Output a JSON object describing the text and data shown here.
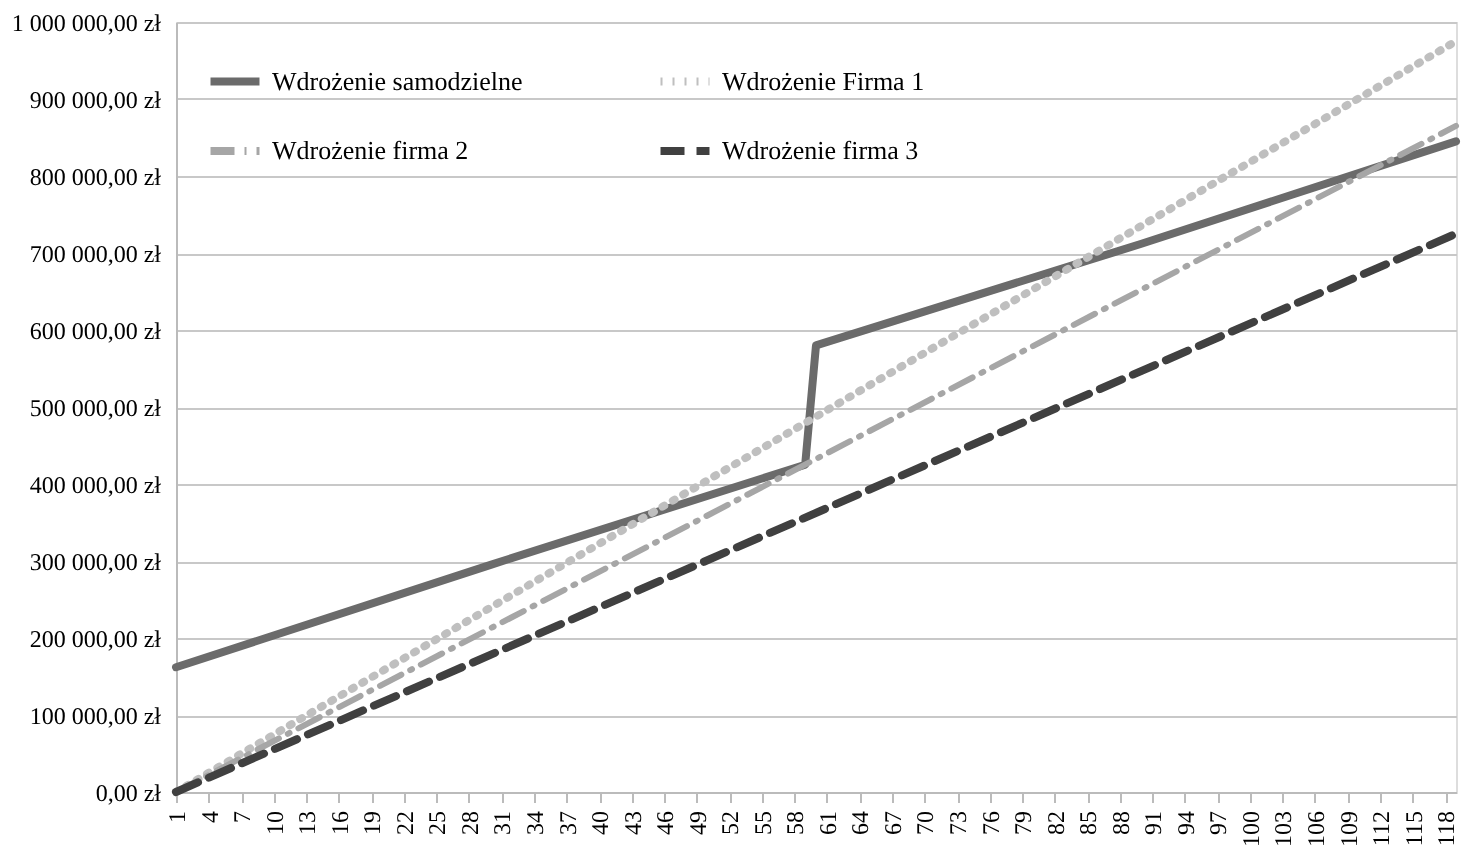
{
  "chart_data": {
    "type": "line",
    "xlim": [
      1,
      119
    ],
    "xticks": [
      1,
      4,
      7,
      10,
      13,
      16,
      19,
      22,
      25,
      28,
      31,
      34,
      37,
      40,
      43,
      46,
      49,
      52,
      55,
      58,
      61,
      64,
      67,
      70,
      73,
      76,
      79,
      82,
      85,
      88,
      91,
      94,
      97,
      100,
      103,
      106,
      109,
      112,
      115,
      118
    ],
    "ylim": [
      0,
      1000000
    ],
    "yticks": [
      {
        "value": 0,
        "label": "0,00 zł"
      },
      {
        "value": 100000,
        "label": "100 000,00 zł"
      },
      {
        "value": 200000,
        "label": "200 000,00 zł"
      },
      {
        "value": 300000,
        "label": "300 000,00 zł"
      },
      {
        "value": 400000,
        "label": "400 000,00 zł"
      },
      {
        "value": 500000,
        "label": "500 000,00 zł"
      },
      {
        "value": 600000,
        "label": "600 000,00 zł"
      },
      {
        "value": 700000,
        "label": "700 000,00 zł"
      },
      {
        "value": 800000,
        "label": "800 000,00 zł"
      },
      {
        "value": 900000,
        "label": "900 000,00 zł"
      },
      {
        "value": 1000000,
        "label": "1 000 000,00 zł"
      }
    ],
    "grid": "y",
    "legend": "top left",
    "series": [
      {
        "name": "Wdrożenie samodzielne",
        "color": "#6b6b6b",
        "line_style": "solid",
        "x": [
          1,
          30,
          59,
          60,
          90,
          119
        ],
        "values": [
          162000,
          295000,
          425000,
          580000,
          712000,
          845000
        ]
      },
      {
        "name": "Wdrożenie Firma 1",
        "color": "#bfbfbf",
        "line_style": "dotted",
        "x": [
          1,
          119
        ],
        "values": [
          0,
          975000
        ]
      },
      {
        "name": "Wdrożenie firma 2",
        "color": "#a6a6a6",
        "line_style": "dashdot",
        "x": [
          1,
          119
        ],
        "values": [
          0,
          865000
        ]
      },
      {
        "name": "Wdrożenie firma 3",
        "color": "#404040",
        "line_style": "dashed",
        "x": [
          1,
          119
        ],
        "values": [
          0,
          725000
        ]
      }
    ]
  }
}
